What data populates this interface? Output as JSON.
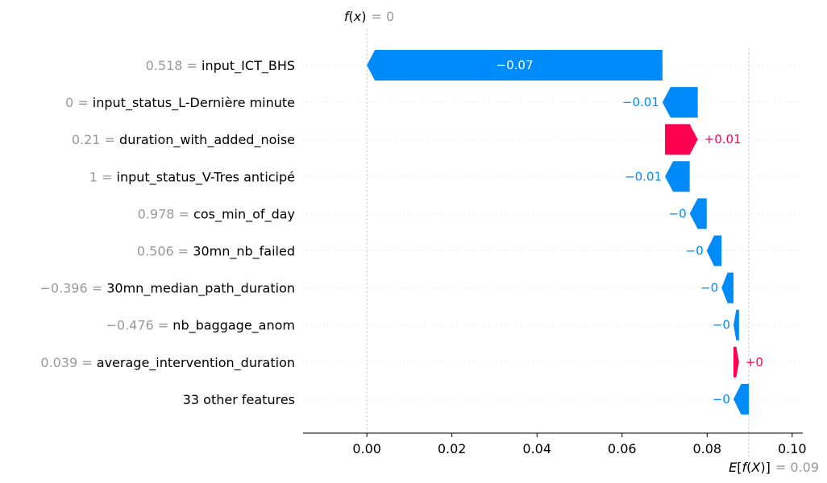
{
  "chart_data": {
    "type": "waterfall",
    "f_x_label": "f(x)",
    "f_x_value": "= 0",
    "f_x": 0.0,
    "expected_label": "E[f(X)]",
    "expected_value": "= 0.09",
    "expected": 0.0898,
    "xlim": [
      -0.015,
      0.1025
    ],
    "xticks": [
      {
        "value": 0.0,
        "label": "0.00"
      },
      {
        "value": 0.02,
        "label": "0.02"
      },
      {
        "value": 0.04,
        "label": "0.04"
      },
      {
        "value": 0.06,
        "label": "0.06"
      },
      {
        "value": 0.08,
        "label": "0.08"
      },
      {
        "value": 0.1,
        "label": "0.10"
      }
    ],
    "colors": {
      "negative": "#008bfb",
      "positive": "#ff0051"
    },
    "features": [
      {
        "value_text": "0.518",
        "name": "input_ICT_BHS",
        "start": 0.0695,
        "end": 0.0,
        "label": "−0.07"
      },
      {
        "value_text": "0",
        "name": "input_status_L-Dernière minute",
        "start": 0.0778,
        "end": 0.0695,
        "label": "−0.01"
      },
      {
        "value_text": "0.21",
        "name": "duration_with_added_noise",
        "start": 0.0701,
        "end": 0.0778,
        "label": "+0.01"
      },
      {
        "value_text": "1",
        "name": "input_status_V-Tres anticipé",
        "start": 0.0759,
        "end": 0.0701,
        "label": "−0.01"
      },
      {
        "value_text": "0.978",
        "name": "cos_min_of_day",
        "start": 0.0799,
        "end": 0.0759,
        "label": "−0"
      },
      {
        "value_text": "0.506",
        "name": "30mn_nb_failed",
        "start": 0.0834,
        "end": 0.0799,
        "label": "−0"
      },
      {
        "value_text": "−0.396",
        "name": "30mn_median_path_duration",
        "start": 0.0862,
        "end": 0.0834,
        "label": "−0"
      },
      {
        "value_text": "−0.476",
        "name": "nb_baggage_anom",
        "start": 0.0875,
        "end": 0.0862,
        "label": "−0"
      },
      {
        "value_text": "0.039",
        "name": "average_intervention_duration",
        "start": 0.0862,
        "end": 0.0875,
        "label": "+0"
      },
      {
        "value_text": "",
        "name": "33 other features",
        "start": 0.0898,
        "end": 0.0862,
        "label": "−0"
      }
    ]
  }
}
